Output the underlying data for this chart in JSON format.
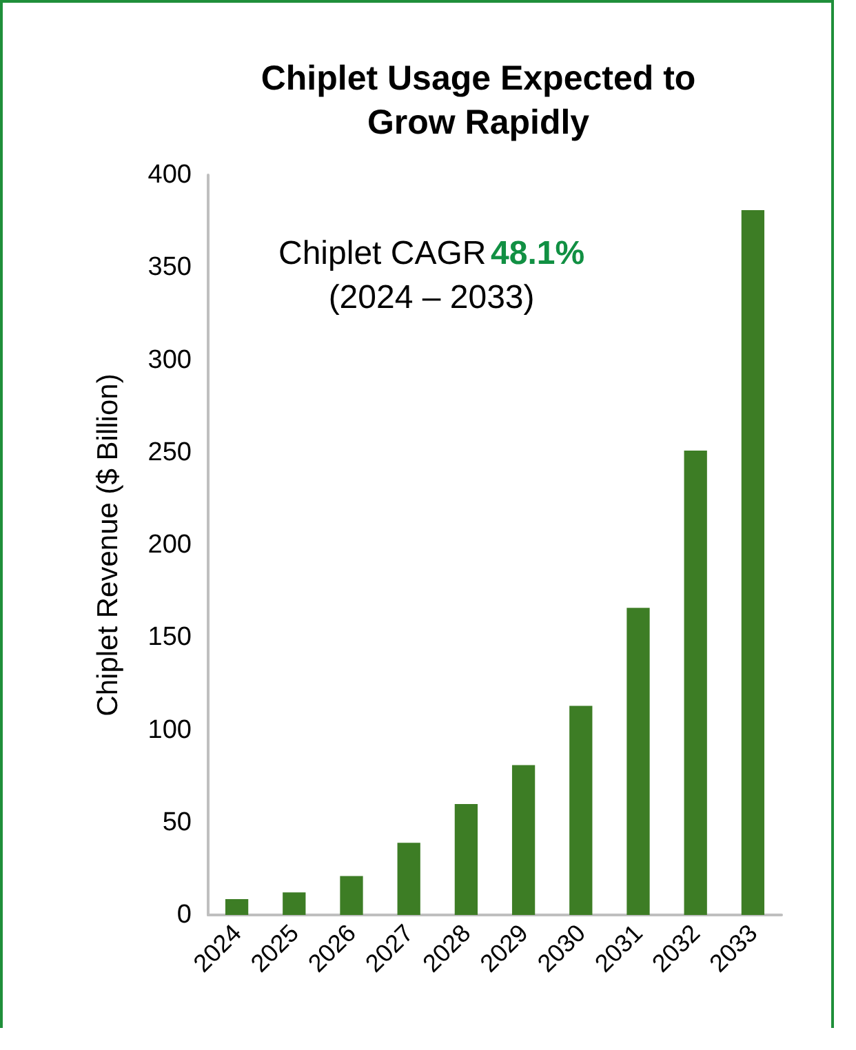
{
  "chart_data": {
    "type": "bar",
    "title": "Chiplet Usage Expected to\nGrow Rapidly",
    "ylabel": "Chiplet Revenue ($ Billion)",
    "categories": [
      "2024",
      "2025",
      "2026",
      "2027",
      "2028",
      "2029",
      "2030",
      "2031",
      "2032",
      "2033"
    ],
    "values": [
      8.6,
      12.2,
      21,
      39,
      60,
      81,
      113,
      166,
      251,
      381
    ],
    "color": "#3d7d25",
    "ylim": [
      0,
      400
    ],
    "yticks": [
      0,
      50,
      100,
      150,
      200,
      250,
      300,
      350,
      400
    ],
    "grid": false,
    "annotations": [
      "Chiplet CAGR",
      "48.1%",
      "(2024 – 2033)"
    ]
  }
}
